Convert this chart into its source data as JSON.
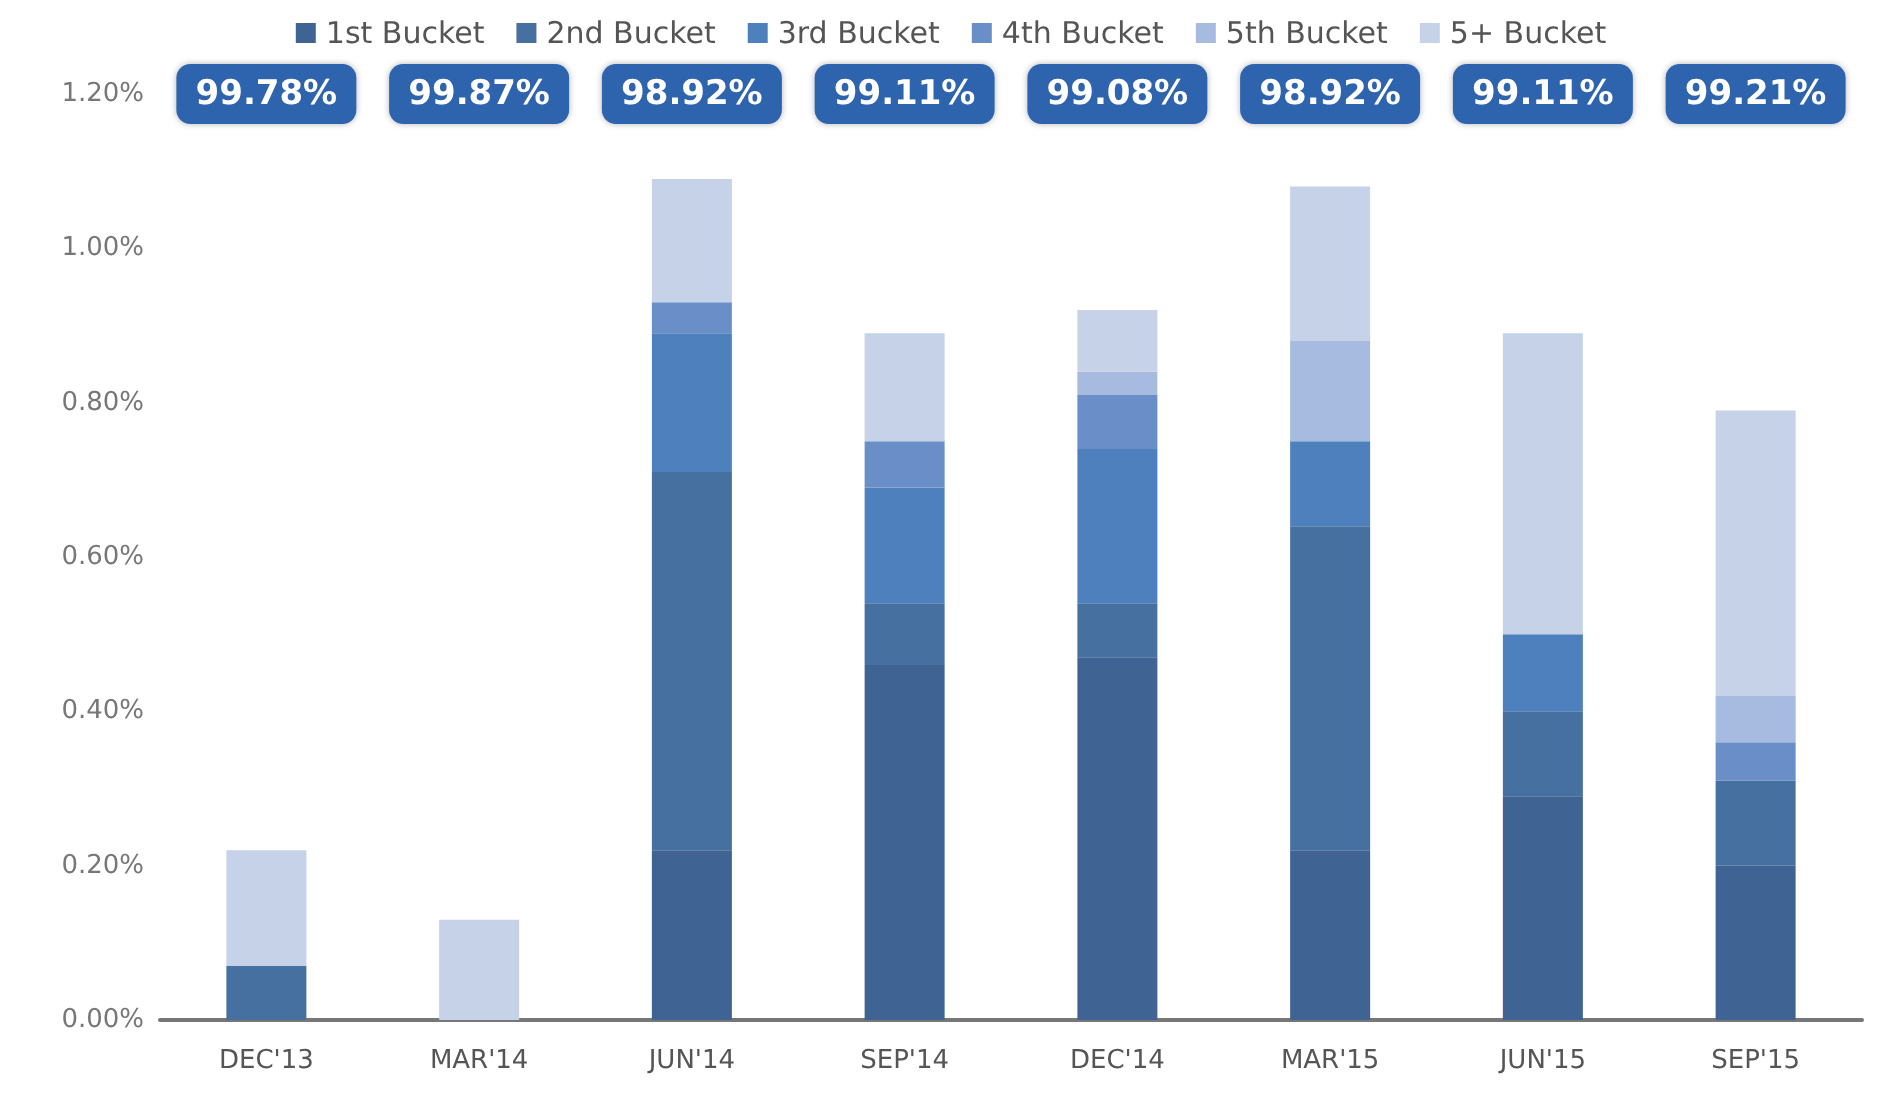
{
  "chart_data": {
    "type": "bar",
    "stacked": true,
    "legend": "top",
    "grid": false,
    "categories": [
      "DEC'13",
      "MAR'14",
      "JUN'14",
      "SEP'14",
      "DEC'14",
      "MAR'15",
      "JUN'15",
      "SEP'15"
    ],
    "series": [
      {
        "name": "1st Bucket",
        "color": "#3f6393",
        "values": [
          0,
          0,
          0.22,
          0.46,
          0.47,
          0.22,
          0.29,
          0.2
        ]
      },
      {
        "name": "2nd Bucket",
        "color": "#46709f",
        "values": [
          0.07,
          0,
          0.49,
          0.08,
          0.07,
          0.42,
          0.11,
          0.11
        ]
      },
      {
        "name": "3rd Bucket",
        "color": "#4e80bd",
        "values": [
          0,
          0,
          0.18,
          0.15,
          0.2,
          0.11,
          0.1,
          0
        ]
      },
      {
        "name": "4th Bucket",
        "color": "#6a8fc8",
        "values": [
          0,
          0,
          0.04,
          0.06,
          0.07,
          0,
          0,
          0.05
        ]
      },
      {
        "name": "5th Bucket",
        "color": "#a6bbdf",
        "values": [
          0,
          0,
          0,
          0,
          0.03,
          0.13,
          0,
          0.06
        ]
      },
      {
        "name": "5+ Bucket",
        "color": "#c5d2e8",
        "values": [
          0.15,
          0.13,
          0.16,
          0.14,
          0.08,
          0.2,
          0.39,
          0.37
        ]
      }
    ],
    "ylim": [
      0,
      1.2
    ],
    "yticks": [
      {
        "value": 0,
        "label": "0.00%"
      },
      {
        "value": 0.2,
        "label": "0.20%"
      },
      {
        "value": 0.4,
        "label": "0.40%"
      },
      {
        "value": 0.6,
        "label": "0.60%"
      },
      {
        "value": 0.8,
        "label": "0.80%"
      },
      {
        "value": 1,
        "label": "1.00%"
      },
      {
        "value": 1.2,
        "label": "1.20%"
      }
    ],
    "annotations": [
      "99.78%",
      "99.87%",
      "98.92%",
      "99.11%",
      "99.08%",
      "98.92%",
      "99.11%",
      "99.21%"
    ]
  }
}
